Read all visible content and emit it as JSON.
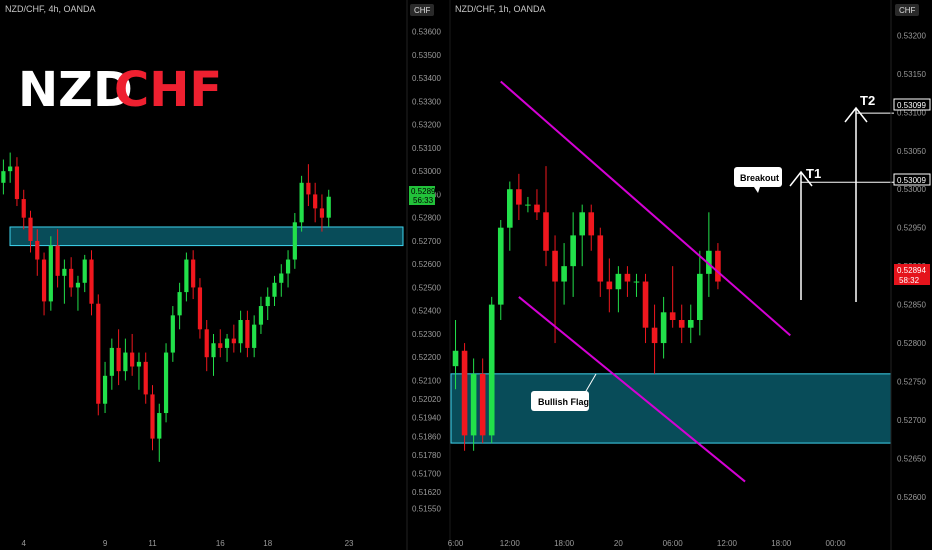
{
  "colors": {
    "up": "#22e04a",
    "down": "#f0171e",
    "zone": "#0e8aa3",
    "channel": "#d400d4",
    "text": "#c8c8c8"
  },
  "logo": {
    "part1": "NZD",
    "part2": "CHF"
  },
  "chart_data": [
    {
      "type": "candlestick",
      "title": "NZD/CHF, 4h, OANDA",
      "currency": "CHF",
      "ylim": [
        0.515,
        0.5365
      ],
      "yticks": [
        "0.53600",
        "0.53500",
        "0.53400",
        "0.53300",
        "0.53200",
        "0.53100",
        "0.53000",
        "0.52900",
        "0.52800",
        "0.52700",
        "0.52600",
        "0.52500",
        "0.52400",
        "0.52300",
        "0.52200",
        "0.52100",
        "0.52020",
        "0.51940",
        "0.51860",
        "0.51780",
        "0.51700",
        "0.51620",
        "0.51550"
      ],
      "xticks": [
        {
          "label": "4",
          "i": 3
        },
        {
          "label": "9",
          "i": 15
        },
        {
          "label": "11",
          "i": 22
        },
        {
          "label": "16",
          "i": 32
        },
        {
          "label": "18",
          "i": 39
        },
        {
          "label": "23",
          "i": 51
        }
      ],
      "n": 54,
      "last_price": "0.52894",
      "countdown": "56:33",
      "zone": [
        0.5268,
        0.5276
      ],
      "ohlc": [
        [
          0.5295,
          0.5305,
          0.529,
          0.53
        ],
        [
          0.53,
          0.5308,
          0.5295,
          0.5302
        ],
        [
          0.5302,
          0.5306,
          0.5285,
          0.5288
        ],
        [
          0.5288,
          0.5292,
          0.5275,
          0.528
        ],
        [
          0.528,
          0.5283,
          0.5265,
          0.527
        ],
        [
          0.527,
          0.5275,
          0.5255,
          0.5262
        ],
        [
          0.5262,
          0.5265,
          0.5238,
          0.5244
        ],
        [
          0.5244,
          0.5272,
          0.524,
          0.5268
        ],
        [
          0.5268,
          0.5275,
          0.525,
          0.5255
        ],
        [
          0.5255,
          0.5262,
          0.5243,
          0.5258
        ],
        [
          0.5258,
          0.5263,
          0.5246,
          0.525
        ],
        [
          0.525,
          0.5255,
          0.524,
          0.5252
        ],
        [
          0.5252,
          0.5264,
          0.5248,
          0.5262
        ],
        [
          0.5262,
          0.5266,
          0.5238,
          0.5243
        ],
        [
          0.5243,
          0.5247,
          0.5195,
          0.52
        ],
        [
          0.52,
          0.5218,
          0.5196,
          0.5212
        ],
        [
          0.5212,
          0.5228,
          0.5206,
          0.5224
        ],
        [
          0.5224,
          0.5232,
          0.5208,
          0.5214
        ],
        [
          0.5214,
          0.5228,
          0.521,
          0.5222
        ],
        [
          0.5222,
          0.523,
          0.5212,
          0.5216
        ],
        [
          0.5216,
          0.5222,
          0.5206,
          0.5218
        ],
        [
          0.5218,
          0.5222,
          0.52,
          0.5204
        ],
        [
          0.5204,
          0.5208,
          0.518,
          0.5185
        ],
        [
          0.5185,
          0.52,
          0.5175,
          0.5196
        ],
        [
          0.5196,
          0.5226,
          0.5192,
          0.5222
        ],
        [
          0.5222,
          0.5242,
          0.5218,
          0.5238
        ],
        [
          0.5238,
          0.5252,
          0.5232,
          0.5248
        ],
        [
          0.5248,
          0.5265,
          0.5244,
          0.5262
        ],
        [
          0.5262,
          0.5266,
          0.5245,
          0.525
        ],
        [
          0.525,
          0.5254,
          0.5228,
          0.5232
        ],
        [
          0.5232,
          0.5236,
          0.5214,
          0.522
        ],
        [
          0.522,
          0.523,
          0.5212,
          0.5226
        ],
        [
          0.5226,
          0.5232,
          0.522,
          0.5224
        ],
        [
          0.5224,
          0.523,
          0.5218,
          0.5228
        ],
        [
          0.5228,
          0.5234,
          0.5222,
          0.5226
        ],
        [
          0.5226,
          0.524,
          0.5222,
          0.5236
        ],
        [
          0.5236,
          0.524,
          0.522,
          0.5224
        ],
        [
          0.5224,
          0.5238,
          0.522,
          0.5234
        ],
        [
          0.5234,
          0.5246,
          0.523,
          0.5242
        ],
        [
          0.5242,
          0.525,
          0.5236,
          0.5246
        ],
        [
          0.5246,
          0.5255,
          0.5242,
          0.5252
        ],
        [
          0.5252,
          0.526,
          0.5246,
          0.5256
        ],
        [
          0.5256,
          0.5266,
          0.525,
          0.5262
        ],
        [
          0.5262,
          0.5282,
          0.5258,
          0.5278
        ],
        [
          0.5278,
          0.5298,
          0.5274,
          0.5295
        ],
        [
          0.5295,
          0.5303,
          0.5285,
          0.529
        ],
        [
          0.529,
          0.5295,
          0.5278,
          0.5284
        ],
        [
          0.5284,
          0.529,
          0.5274,
          0.528
        ],
        [
          0.528,
          0.5292,
          0.5276,
          0.5289
        ]
      ]
    },
    {
      "type": "candlestick",
      "title": "NZD/CHF, 1h, OANDA",
      "currency": "CHF",
      "ylim": [
        0.5257,
        0.5322
      ],
      "yticks": [
        "0.53200",
        "0.53150",
        "0.53100",
        "0.53050",
        "0.53000",
        "0.52950",
        "0.52900",
        "0.52850",
        "0.52800",
        "0.52750",
        "0.52700",
        "0.52650",
        "0.52600"
      ],
      "xticks": [
        {
          "label": "6:00",
          "i": 0
        },
        {
          "label": "12:00",
          "i": 6
        },
        {
          "label": "18:00",
          "i": 12
        },
        {
          "label": "20",
          "i": 18
        },
        {
          "label": "06:00",
          "i": 24
        },
        {
          "label": "12:00",
          "i": 30
        },
        {
          "label": "18:00",
          "i": 36
        },
        {
          "label": "00:00",
          "i": 42
        }
      ],
      "n": 42,
      "last_price": "0.52894",
      "countdown": "58:32",
      "zone": [
        0.5267,
        0.5276
      ],
      "channel_upper": [
        [
          5,
          0.5314
        ],
        [
          37,
          0.5281
        ]
      ],
      "channel_lower": [
        [
          7,
          0.5286
        ],
        [
          32,
          0.5262
        ]
      ],
      "target_levels": [
        0.53009,
        0.53099
      ],
      "labels": {
        "breakout": "Breakout",
        "flag": "Bullish Flag",
        "t1": "T1",
        "t2": "T2"
      },
      "ohlc": [
        [
          0.5277,
          0.5283,
          0.5274,
          0.5279
        ],
        [
          0.5279,
          0.528,
          0.5266,
          0.5268
        ],
        [
          0.5268,
          0.5278,
          0.5266,
          0.5276
        ],
        [
          0.5276,
          0.5278,
          0.5267,
          0.5268
        ],
        [
          0.5268,
          0.5286,
          0.5267,
          0.5285
        ],
        [
          0.5285,
          0.5296,
          0.5283,
          0.5295
        ],
        [
          0.5295,
          0.5301,
          0.5292,
          0.53
        ],
        [
          0.53,
          0.5302,
          0.5296,
          0.5298
        ],
        [
          0.5298,
          0.5299,
          0.5297,
          0.5298
        ],
        [
          0.5298,
          0.53,
          0.5296,
          0.5297
        ],
        [
          0.5297,
          0.5303,
          0.529,
          0.5292
        ],
        [
          0.5292,
          0.5294,
          0.528,
          0.5288
        ],
        [
          0.5288,
          0.5293,
          0.5285,
          0.529
        ],
        [
          0.529,
          0.5297,
          0.5286,
          0.5294
        ],
        [
          0.5294,
          0.5298,
          0.529,
          0.5297
        ],
        [
          0.5297,
          0.5298,
          0.5292,
          0.5294
        ],
        [
          0.5294,
          0.5295,
          0.5286,
          0.5288
        ],
        [
          0.5288,
          0.5291,
          0.5284,
          0.5287
        ],
        [
          0.5287,
          0.529,
          0.5284,
          0.5289
        ],
        [
          0.5289,
          0.529,
          0.5286,
          0.5288
        ],
        [
          0.5288,
          0.5289,
          0.5286,
          0.5288
        ],
        [
          0.5288,
          0.5289,
          0.528,
          0.5282
        ],
        [
          0.5282,
          0.5285,
          0.5276,
          0.528
        ],
        [
          0.528,
          0.5286,
          0.5278,
          0.5284
        ],
        [
          0.5284,
          0.529,
          0.5282,
          0.5283
        ],
        [
          0.5283,
          0.5285,
          0.528,
          0.5282
        ],
        [
          0.5282,
          0.5285,
          0.528,
          0.5283
        ],
        [
          0.5283,
          0.5292,
          0.5281,
          0.5289
        ],
        [
          0.5289,
          0.5297,
          0.5286,
          0.5292
        ],
        [
          0.5292,
          0.5293,
          0.5287,
          0.5288
        ]
      ]
    }
  ]
}
